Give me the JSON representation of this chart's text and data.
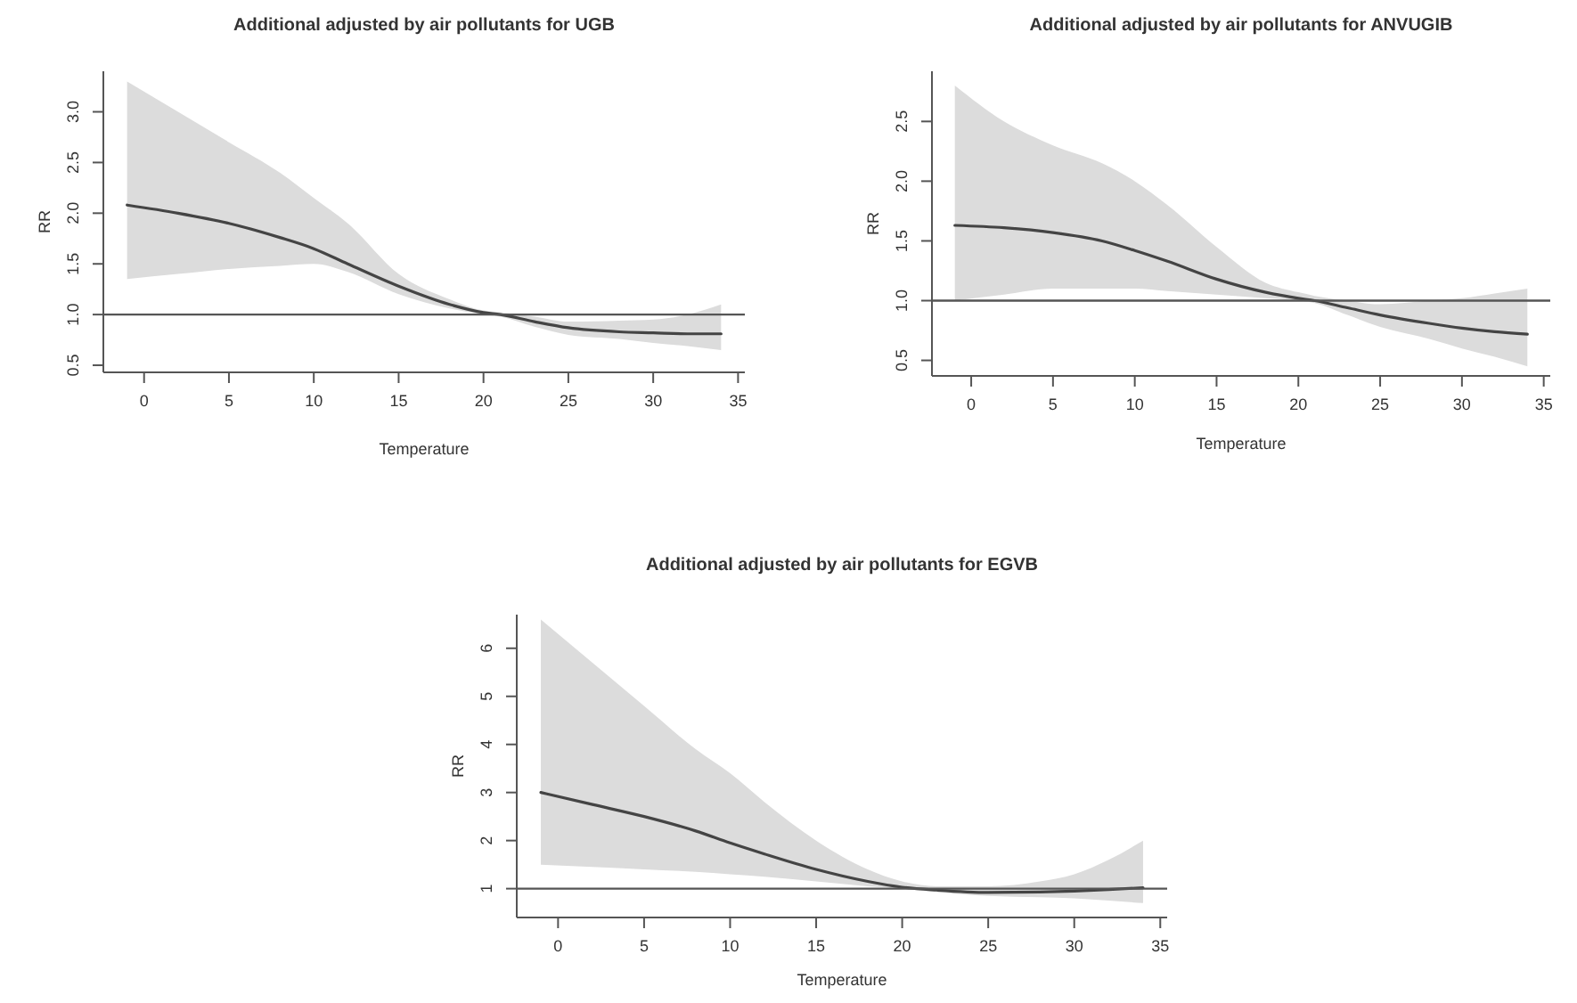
{
  "chart_data": [
    {
      "type": "line",
      "title": "Additional adjusted by air pollutants for UGB",
      "xlabel": "Temperature",
      "ylabel": "RR",
      "xlim": [
        -2.4,
        35.4
      ],
      "xticks": [
        0,
        5,
        10,
        15,
        20,
        25,
        30,
        35
      ],
      "ylim": [
        0.43,
        3.4
      ],
      "yticks": [
        0.5,
        {
          "value": 1,
          "label": "1.0"
        },
        1.5,
        {
          "value": 2,
          "label": "2.0"
        },
        2.5,
        {
          "value": 3,
          "label": "3.0"
        }
      ],
      "ref_lines": [
        {
          "axis": "y",
          "value": 1,
          "color": "#555555"
        }
      ],
      "series": [
        {
          "color": "#444444",
          "x": [
            -1,
            2,
            5,
            8,
            10,
            12,
            15,
            18,
            20,
            21,
            23,
            25,
            28,
            30,
            32,
            34
          ],
          "values": [
            2.08,
            2.0,
            1.9,
            1.76,
            1.65,
            1.5,
            1.28,
            1.1,
            1.02,
            1.0,
            0.93,
            0.87,
            0.83,
            0.82,
            0.81,
            0.81
          ],
          "lower": [
            1.35,
            1.4,
            1.45,
            1.48,
            1.5,
            1.42,
            1.2,
            1.06,
            1.0,
            0.98,
            0.88,
            0.8,
            0.76,
            0.72,
            0.69,
            0.65
          ],
          "upper": [
            3.3,
            3.0,
            2.7,
            2.4,
            2.15,
            1.9,
            1.4,
            1.15,
            1.04,
            1.02,
            0.98,
            0.93,
            0.94,
            0.95,
            1.0,
            1.1
          ]
        }
      ]
    },
    {
      "type": "line",
      "title": "Additional adjusted by air pollutants for ANVUGIB",
      "xlabel": "Temperature",
      "ylabel": "RR",
      "xlim": [
        -2.4,
        35.4
      ],
      "xticks": [
        0,
        5,
        10,
        15,
        20,
        25,
        30,
        35
      ],
      "ylim": [
        0.37,
        2.92
      ],
      "yticks": [
        0.5,
        {
          "value": 1,
          "label": "1.0"
        },
        1.5,
        {
          "value": 2,
          "label": "2.0"
        },
        2.5
      ],
      "ref_lines": [
        {
          "axis": "y",
          "value": 1,
          "color": "#555555"
        }
      ],
      "series": [
        {
          "color": "#444444",
          "x": [
            -1,
            2,
            5,
            8,
            10,
            12,
            15,
            18,
            20,
            21,
            23,
            25,
            28,
            30,
            32,
            34
          ],
          "values": [
            1.63,
            1.61,
            1.57,
            1.5,
            1.42,
            1.33,
            1.18,
            1.07,
            1.02,
            1.0,
            0.94,
            0.88,
            0.81,
            0.77,
            0.74,
            0.72
          ],
          "lower": [
            1.0,
            1.05,
            1.1,
            1.1,
            1.1,
            1.08,
            1.05,
            1.02,
            1.0,
            0.98,
            0.88,
            0.78,
            0.68,
            0.6,
            0.53,
            0.45
          ],
          "upper": [
            2.8,
            2.5,
            2.3,
            2.15,
            2.0,
            1.8,
            1.45,
            1.15,
            1.07,
            1.04,
            1.0,
            0.97,
            1.0,
            1.02,
            1.06,
            1.1
          ]
        }
      ]
    },
    {
      "type": "line",
      "title": "Additional adjusted by air pollutants for EGVB",
      "xlabel": "Temperature",
      "ylabel": "RR",
      "xlim": [
        -2.4,
        35.4
      ],
      "xticks": [
        0,
        5,
        10,
        15,
        20,
        25,
        30,
        35
      ],
      "ylim": [
        0.4,
        6.7
      ],
      "yticks": [
        1,
        2,
        3,
        4,
        5,
        6
      ],
      "ref_lines": [
        {
          "axis": "y",
          "value": 1,
          "color": "#555555"
        }
      ],
      "series": [
        {
          "color": "#444444",
          "x": [
            -1,
            2,
            5,
            8,
            10,
            12,
            15,
            18,
            20,
            22,
            25,
            28,
            30,
            32,
            34
          ],
          "values": [
            3.0,
            2.75,
            2.5,
            2.2,
            1.95,
            1.72,
            1.4,
            1.15,
            1.03,
            0.97,
            0.92,
            0.93,
            0.95,
            0.98,
            1.02
          ],
          "lower": [
            1.5,
            1.45,
            1.4,
            1.35,
            1.3,
            1.25,
            1.15,
            1.05,
            1.0,
            0.93,
            0.85,
            0.82,
            0.8,
            0.75,
            0.7
          ],
          "upper": [
            6.6,
            5.7,
            4.8,
            3.9,
            3.4,
            2.8,
            2.0,
            1.4,
            1.15,
            1.05,
            1.05,
            1.15,
            1.3,
            1.6,
            2.0
          ]
        }
      ]
    }
  ]
}
